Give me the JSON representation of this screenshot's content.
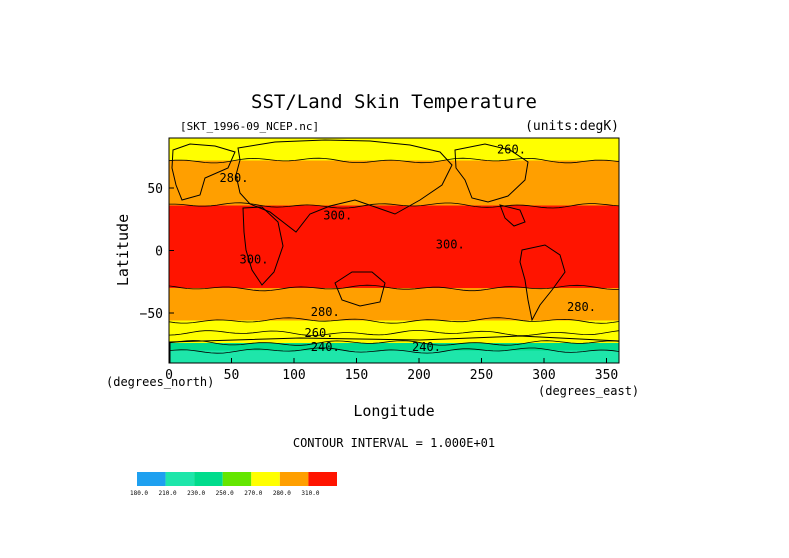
{
  "chart_data": {
    "type": "heatmap",
    "title": "SST/Land Skin Temperature",
    "file_label": "[SKT_1996-09_NCEP.nc]",
    "units_label": "(units:degK)",
    "xlabel": "Longitude",
    "ylabel": "Latitude",
    "x_unit_label": "(degrees_east)",
    "y_unit_label": "(degrees_north)",
    "xlim": [
      0,
      360
    ],
    "ylim": [
      -90,
      90
    ],
    "x_ticks": [
      0,
      50,
      100,
      150,
      200,
      250,
      300,
      350
    ],
    "y_ticks": [
      50,
      0,
      -50
    ],
    "y_tick_labels": [
      "50",
      "0",
      "−50"
    ],
    "contour_interval_text": "CONTOUR INTERVAL = 1.000E+01",
    "contour_labels": [
      {
        "text": "280.",
        "lon": 52,
        "lat": 58
      },
      {
        "text": "300.",
        "lon": 135,
        "lat": 28
      },
      {
        "text": "300.",
        "lon": 225,
        "lat": 5
      },
      {
        "text": "300.",
        "lon": 68,
        "lat": -7
      },
      {
        "text": "280.",
        "lon": 125,
        "lat": -49
      },
      {
        "text": "280.",
        "lon": 330,
        "lat": -45
      },
      {
        "text": "260.",
        "lon": 120,
        "lat": -66
      },
      {
        "text": "240.",
        "lon": 125,
        "lat": -77
      },
      {
        "text": "240.",
        "lon": 206,
        "lat": -77
      },
      {
        "text": "260.",
        "lon": 274,
        "lat": 81
      }
    ],
    "bands": [
      {
        "lat": [
          72,
          90
        ],
        "value": 270
      },
      {
        "lat": [
          36,
          72
        ],
        "value": 280
      },
      {
        "lat": [
          -30,
          36
        ],
        "value": 300
      },
      {
        "lat": [
          -56,
          -30
        ],
        "value": 280
      },
      {
        "lat": [
          -66,
          -56
        ],
        "value": 270
      },
      {
        "lat": [
          -74,
          -66
        ],
        "value": 260
      },
      {
        "lat": [
          -80,
          -74
        ],
        "value": 240
      },
      {
        "lat": [
          -90,
          -80
        ],
        "value": 230
      }
    ],
    "legend": {
      "colors": [
        "#1ea0f0",
        "#1ee6aa",
        "#00dc8c",
        "#64e600",
        "#ffff00",
        "#ff9f00",
        "#ff1400"
      ],
      "labels": [
        "180.0",
        "210.0",
        "230.0",
        "250.0",
        "270.0",
        "280.0",
        "310.0"
      ]
    }
  }
}
